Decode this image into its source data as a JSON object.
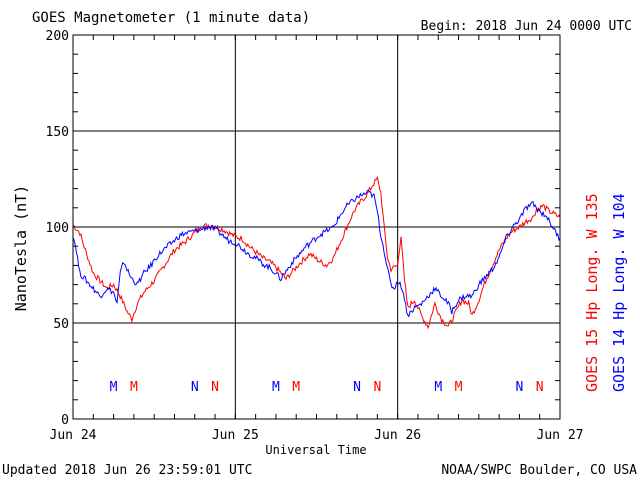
{
  "chart_data": {
    "type": "line",
    "title": "GOES Magnetometer (1 minute data)",
    "begin_label": "Begin:  2018 Jun 24 0000 UTC",
    "xlabel": "Universal Time",
    "ylabel": "NanoTesla (nT)",
    "ylim": [
      0,
      200
    ],
    "yticks": [
      "0",
      "50",
      "100",
      "150",
      "200"
    ],
    "xlim": [
      0,
      72
    ],
    "xticks": [
      {
        "hours": 0,
        "label": "Jun 24"
      },
      {
        "hours": 24,
        "label": "Jun 25"
      },
      {
        "hours": 48,
        "label": "Jun 26"
      },
      {
        "hours": 72,
        "label": "Jun 27"
      }
    ],
    "x_unit": "hours since Jun 24 0000 UTC",
    "grid": true,
    "legend_placement": "right",
    "series": [
      {
        "name": "GOES 15 Hp  Long. W 135",
        "color": "#ff0000",
        "markers": [
          {
            "letter": "M",
            "x": 9.0
          },
          {
            "letter": "N",
            "x": 21.0
          },
          {
            "letter": "M",
            "x": 33.0
          },
          {
            "letter": "N",
            "x": 45.0
          },
          {
            "letter": "M",
            "x": 57.0
          },
          {
            "letter": "N",
            "x": 69.0
          }
        ],
        "points": [
          [
            0,
            101
          ],
          [
            1,
            97
          ],
          [
            2,
            86
          ],
          [
            3,
            76
          ],
          [
            4,
            72
          ],
          [
            5,
            68
          ],
          [
            6,
            70
          ],
          [
            7,
            64
          ],
          [
            8,
            56
          ],
          [
            8.7,
            52
          ],
          [
            9.5,
            60
          ],
          [
            10.5,
            66
          ],
          [
            12,
            72
          ],
          [
            13.5,
            80
          ],
          [
            15,
            88
          ],
          [
            16.5,
            92
          ],
          [
            18,
            97
          ],
          [
            19,
            100
          ],
          [
            20,
            101
          ],
          [
            21,
            100
          ],
          [
            22,
            99
          ],
          [
            23,
            97
          ],
          [
            24,
            95
          ],
          [
            25,
            94
          ],
          [
            26,
            90
          ],
          [
            27,
            87
          ],
          [
            28,
            84
          ],
          [
            29,
            82
          ],
          [
            30,
            79
          ],
          [
            31,
            75
          ],
          [
            31.5,
            73
          ],
          [
            32.5,
            77
          ],
          [
            33.5,
            81
          ],
          [
            35,
            86
          ],
          [
            36.5,
            82
          ],
          [
            37.5,
            80
          ],
          [
            38.5,
            84
          ],
          [
            39.5,
            92
          ],
          [
            40.5,
            100
          ],
          [
            41.5,
            108
          ],
          [
            42.5,
            113
          ],
          [
            43.5,
            117
          ],
          [
            44.3,
            122
          ],
          [
            45,
            125
          ],
          [
            45.5,
            118
          ],
          [
            46,
            100
          ],
          [
            46.5,
            84
          ],
          [
            47,
            78
          ],
          [
            48,
            80
          ],
          [
            48.5,
            96
          ],
          [
            49,
            72
          ],
          [
            49.5,
            58
          ],
          [
            50.5,
            62
          ],
          [
            51.5,
            54
          ],
          [
            52.5,
            48
          ],
          [
            53.5,
            60
          ],
          [
            54.5,
            52
          ],
          [
            55.5,
            48
          ],
          [
            56.5,
            55
          ],
          [
            57.5,
            62
          ],
          [
            58.5,
            60
          ],
          [
            59,
            54
          ],
          [
            60,
            62
          ],
          [
            61,
            72
          ],
          [
            62,
            80
          ],
          [
            63,
            88
          ],
          [
            64,
            94
          ],
          [
            65,
            98
          ],
          [
            66,
            100
          ],
          [
            67,
            103
          ],
          [
            68,
            105
          ],
          [
            68.5,
            109
          ],
          [
            69.5,
            111
          ],
          [
            70.5,
            108
          ],
          [
            71.5,
            106
          ],
          [
            72,
            105
          ]
        ]
      },
      {
        "name": "GOES 14 Hp  Long. W 104",
        "color": "#0000ff",
        "markers": [
          {
            "letter": "M",
            "x": 6.0
          },
          {
            "letter": "N",
            "x": 18.0
          },
          {
            "letter": "M",
            "x": 30.0
          },
          {
            "letter": "N",
            "x": 42.0
          },
          {
            "letter": "M",
            "x": 54.0
          },
          {
            "letter": "N",
            "x": 66.0
          }
        ],
        "points": [
          [
            0,
            96
          ],
          [
            0.5,
            88
          ],
          [
            1,
            76
          ],
          [
            2,
            72
          ],
          [
            3,
            68
          ],
          [
            4,
            64
          ],
          [
            5,
            68
          ],
          [
            6,
            66
          ],
          [
            6.5,
            60
          ],
          [
            7,
            76
          ],
          [
            7.5,
            82
          ],
          [
            8.5,
            74
          ],
          [
            9.5,
            70
          ],
          [
            10.5,
            76
          ],
          [
            11.5,
            80
          ],
          [
            12.5,
            85
          ],
          [
            14,
            90
          ],
          [
            15,
            93
          ],
          [
            16,
            96
          ],
          [
            17,
            97
          ],
          [
            18,
            98
          ],
          [
            19,
            99
          ],
          [
            20,
            100
          ],
          [
            21,
            99
          ],
          [
            22,
            96
          ],
          [
            23,
            93
          ],
          [
            24,
            92
          ],
          [
            25,
            89
          ],
          [
            26,
            86
          ],
          [
            27,
            84
          ],
          [
            28,
            81
          ],
          [
            29,
            79
          ],
          [
            30,
            76
          ],
          [
            30.7,
            73
          ],
          [
            31.5,
            77
          ],
          [
            32.5,
            82
          ],
          [
            33.5,
            86
          ],
          [
            34.5,
            90
          ],
          [
            35.5,
            93
          ],
          [
            36.5,
            96
          ],
          [
            37.5,
            98
          ],
          [
            38.5,
            100
          ],
          [
            39.5,
            106
          ],
          [
            40.5,
            111
          ],
          [
            41.5,
            114
          ],
          [
            42.3,
            116
          ],
          [
            43,
            117
          ],
          [
            43.7,
            118
          ],
          [
            44.5,
            116
          ],
          [
            45,
            108
          ],
          [
            45.5,
            96
          ],
          [
            46,
            88
          ],
          [
            46.5,
            78
          ],
          [
            47,
            70
          ],
          [
            47.5,
            68
          ],
          [
            48,
            72
          ],
          [
            48.7,
            68
          ],
          [
            49.5,
            54
          ],
          [
            50.5,
            58
          ],
          [
            51.5,
            60
          ],
          [
            52.5,
            64
          ],
          [
            53.5,
            68
          ],
          [
            54.5,
            64
          ],
          [
            55.5,
            60
          ],
          [
            56,
            56
          ],
          [
            57,
            62
          ],
          [
            58,
            64
          ],
          [
            59,
            64
          ],
          [
            60,
            70
          ],
          [
            61,
            74
          ],
          [
            62,
            78
          ],
          [
            63,
            84
          ],
          [
            64,
            94
          ],
          [
            65,
            100
          ],
          [
            66,
            104
          ],
          [
            67,
            110
          ],
          [
            68,
            112
          ],
          [
            69,
            108
          ],
          [
            70,
            106
          ],
          [
            70.5,
            102
          ],
          [
            71,
            100
          ],
          [
            71.5,
            96
          ],
          [
            72,
            94
          ]
        ]
      }
    ]
  },
  "footer": {
    "updated": "Updated 2018 Jun 26 23:59:01 UTC",
    "credit": "NOAA/SWPC Boulder, CO USA"
  }
}
